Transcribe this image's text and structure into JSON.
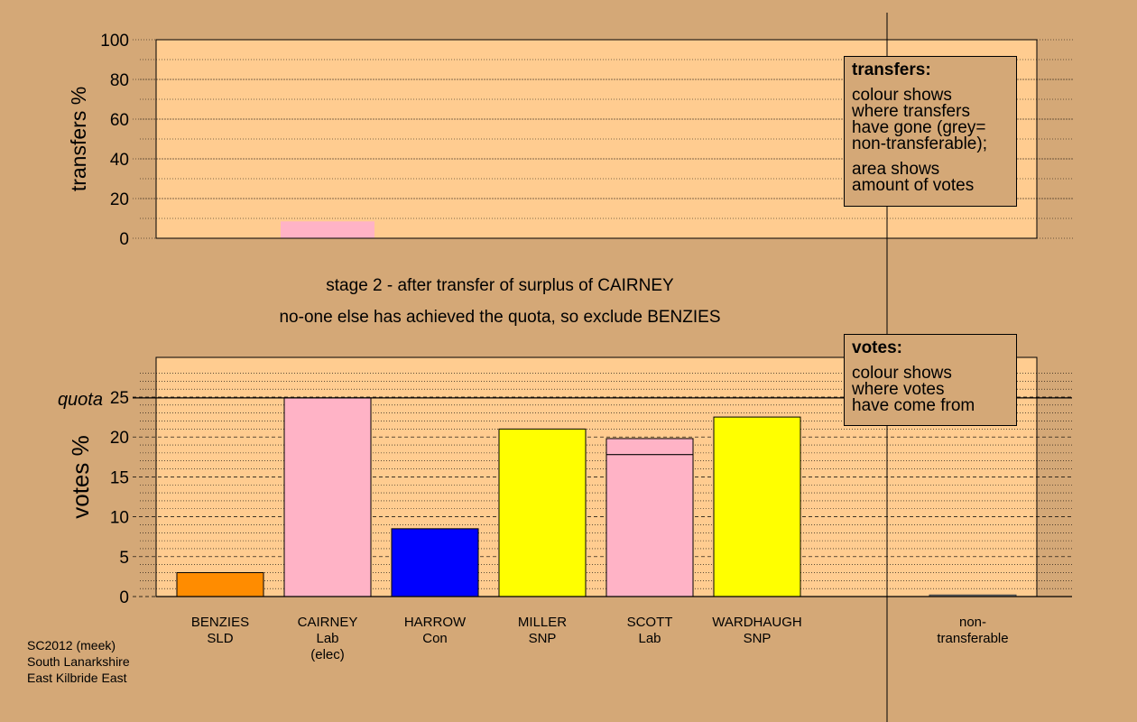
{
  "chart_data": [
    {
      "type": "bar",
      "ylabel": "transfers %",
      "ylim": [
        0,
        100
      ],
      "yticks": [
        0,
        20,
        40,
        60,
        80,
        100
      ],
      "categories": [
        "BENZIES",
        "CAIRNEY",
        "HARROW",
        "MILLER",
        "SCOTT",
        "WARDHAUGH",
        "non-transferable"
      ],
      "values": [
        0,
        8.5,
        0,
        0,
        0,
        0,
        0
      ],
      "colors": [
        "#ff8c00",
        "#ffb3c6",
        "#0000ff",
        "#ffff00",
        "#ffb3c6",
        "#ffff00",
        "#808080"
      ],
      "legend": {
        "title": "transfers:",
        "lines": [
          "colour shows\nwhere transfers\nhave gone (grey=\nnon-transferable);",
          "area shows\namount of votes"
        ],
        "placement": "top-right"
      }
    },
    {
      "type": "bar",
      "ylabel": "votes %",
      "ylim": [
        0,
        25
      ],
      "yticks": [
        0,
        5,
        10,
        15,
        20,
        25
      ],
      "quota": 24.9,
      "quota_label": "quota",
      "categories": [
        {
          "name": "BENZIES",
          "party": "SLD",
          "note": ""
        },
        {
          "name": "CAIRNEY",
          "party": "Lab",
          "note": "(elec)"
        },
        {
          "name": "HARROW",
          "party": "Con",
          "note": ""
        },
        {
          "name": "MILLER",
          "party": "SNP",
          "note": ""
        },
        {
          "name": "SCOTT",
          "party": "Lab",
          "note": ""
        },
        {
          "name": "WARDHAUGH",
          "party": "SNP",
          "note": ""
        },
        {
          "name": "non-",
          "party": "transferable",
          "note": ""
        }
      ],
      "series": [
        {
          "values": [
            3.0,
            24.9,
            8.5,
            21.0,
            17.8,
            22.5,
            0.2
          ],
          "colors": [
            "#ff8c00",
            "#ffb3c6",
            "#0000ff",
            "#ffff00",
            "#ffb3c6",
            "#ffff00",
            "#808080"
          ]
        },
        {
          "values": [
            0,
            0,
            0,
            0,
            2.0,
            0,
            0
          ],
          "colors": [
            "#ffb3c6",
            "#ffb3c6",
            "#ffb3c6",
            "#ffb3c6",
            "#ffb3c6",
            "#ffb3c6",
            "#ffb3c6"
          ]
        }
      ],
      "legend": {
        "title": "votes:",
        "lines": [
          "colour shows\nwhere votes\nhave come from"
        ],
        "placement": "top-right"
      }
    }
  ],
  "captions": {
    "line1": "stage 2 - after transfer of surplus of CAIRNEY",
    "line2": "no-one else has achieved the quota, so exclude BENZIES"
  },
  "footer": {
    "line1": "SC2012 (meek)",
    "line2": "South Lanarkshire",
    "line3": "East Kilbride East"
  },
  "colors": {
    "background": "#d4a877",
    "plot_background": "#ffcc90",
    "axis": "#000000"
  }
}
